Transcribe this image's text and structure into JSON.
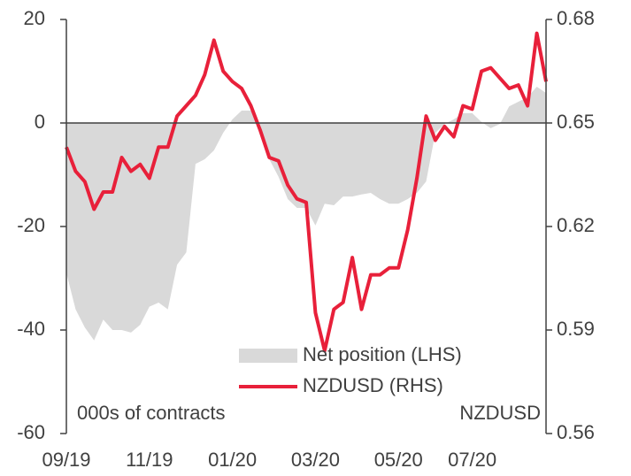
{
  "chart_data": {
    "type": "area-line",
    "categories": [
      "09/19",
      null,
      null,
      null,
      null,
      null,
      null,
      null,
      null,
      "11/19",
      null,
      null,
      null,
      null,
      null,
      null,
      null,
      null,
      "01/20",
      null,
      null,
      null,
      null,
      null,
      null,
      null,
      null,
      "03/20",
      null,
      null,
      null,
      null,
      null,
      null,
      null,
      null,
      "05/20",
      null,
      null,
      null,
      null,
      null,
      null,
      null,
      "07/20",
      null,
      null,
      null,
      null,
      null,
      null,
      null,
      null
    ],
    "series": [
      {
        "name": "Net position (LHS)",
        "color": "#d9d9d9",
        "type": "area",
        "axis": "y",
        "values": [
          -29,
          -36,
          -39.5,
          -42,
          -38,
          -40,
          -40,
          -40.5,
          -39,
          -35.5,
          -34.7,
          -36,
          -27.4,
          -25,
          -7.9,
          -7,
          -5.3,
          -1.9,
          0.7,
          2.4,
          2.4,
          -0.2,
          -7,
          -10.4,
          -14.7,
          -16.4,
          -16.4,
          -19.8,
          -15.6,
          -15.9,
          -14.2,
          -14.2,
          -13.8,
          -13.5,
          -14.7,
          -15.6,
          -15.6,
          -14.7,
          -13.5,
          -11.3,
          -1.9,
          -0.2,
          0.7,
          1.9,
          1.9,
          0.2,
          -1,
          -0.2,
          3.2,
          4.1,
          5,
          7,
          5.8
        ]
      },
      {
        "name": "NZDUSD (RHS)",
        "color": "#e8203a",
        "type": "line",
        "axis": "y2",
        "values": [
          0.643,
          0.636,
          0.633,
          0.625,
          0.63,
          0.63,
          0.64,
          0.636,
          0.638,
          0.634,
          0.643,
          0.643,
          0.652,
          0.655,
          0.658,
          0.664,
          0.674,
          0.665,
          0.662,
          0.66,
          0.655,
          0.648,
          0.64,
          0.639,
          0.632,
          0.628,
          0.627,
          0.595,
          0.584,
          0.596,
          0.598,
          0.611,
          0.596,
          0.606,
          0.606,
          0.608,
          0.608,
          0.619,
          0.634,
          0.652,
          0.645,
          0.649,
          0.646,
          0.655,
          0.654,
          0.665,
          0.666,
          0.663,
          0.66,
          0.661,
          0.655,
          0.676,
          0.662
        ]
      }
    ],
    "ylim": [
      -60,
      20
    ],
    "yticks": [
      -60,
      -40,
      -20,
      0,
      20
    ],
    "y2lim": [
      0.56,
      0.68
    ],
    "y2ticks": [
      0.56,
      0.59,
      0.62,
      0.65,
      0.68
    ],
    "annotations": [
      "000s of contracts",
      "NZDUSD"
    ],
    "legend": "lower center"
  }
}
